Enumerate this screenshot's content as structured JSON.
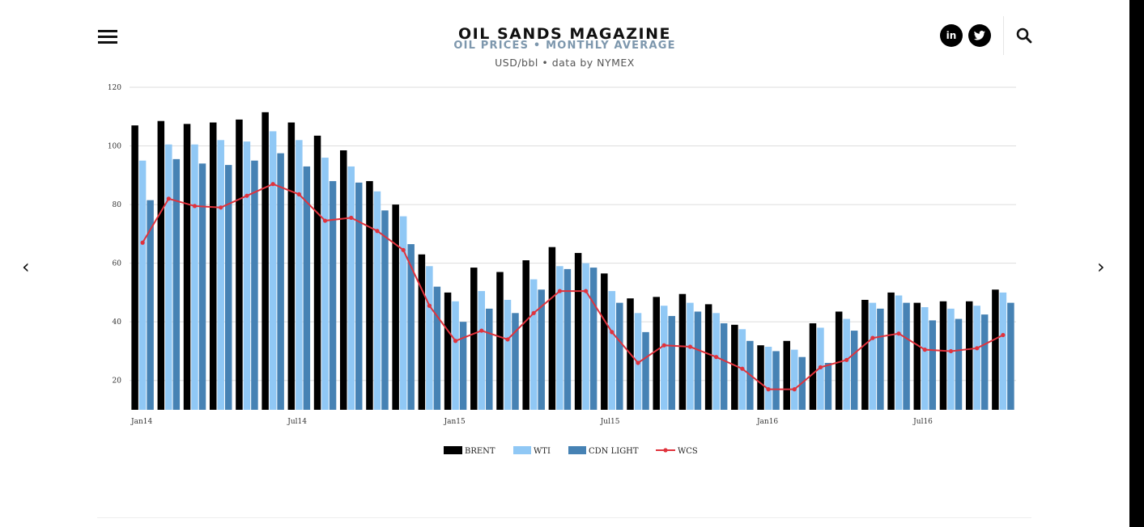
{
  "header": {
    "site_title": "OIL SANDS MAGAZINE",
    "menu_icon": "hamburger-menu-icon",
    "social": [
      {
        "name": "linkedin-icon",
        "label": "in"
      },
      {
        "name": "twitter-icon",
        "label": "🐦"
      }
    ],
    "search_icon": "search-icon"
  },
  "nav": {
    "prev_label": "‹",
    "next_label": "›"
  },
  "colors": {
    "BRENT": "#000000",
    "WTI": "#90c8f5",
    "CDN LIGHT": "#4682b4",
    "WCS": "#e0323c",
    "grid": "#dddddd",
    "title": "#7d97ad"
  },
  "chart_data": {
    "type": "bar",
    "title": "OIL PRICES • MONTHLY AVERAGE",
    "subtitle": "USD/bbl • data by NYMEX",
    "xlabel": "",
    "ylabel": "",
    "ylim": [
      10,
      120
    ],
    "yticks": [
      20,
      40,
      60,
      80,
      100,
      120
    ],
    "grid": true,
    "legend_position": "bottom-center",
    "categories": [
      "Jan14",
      "Feb14",
      "Mar14",
      "Apr14",
      "May14",
      "Jun14",
      "Jul14",
      "Aug14",
      "Sep14",
      "Oct14",
      "Nov14",
      "Dec14",
      "Jan15",
      "Feb15",
      "Mar15",
      "Apr15",
      "May15",
      "Jun15",
      "Jul15",
      "Aug15",
      "Sep15",
      "Oct15",
      "Nov15",
      "Dec15",
      "Jan16",
      "Feb16",
      "Mar16",
      "Apr16",
      "May16",
      "Jun16",
      "Jul16",
      "Aug16",
      "Sep16",
      "Oct16"
    ],
    "tick_labels": [
      {
        "index": 0,
        "label": "Jan14"
      },
      {
        "index": 6,
        "label": "Jul14"
      },
      {
        "index": 12,
        "label": "Jan15"
      },
      {
        "index": 18,
        "label": "Jul15"
      },
      {
        "index": 24,
        "label": "Jan16"
      },
      {
        "index": 30,
        "label": "Jul16"
      }
    ],
    "series": [
      {
        "name": "BRENT",
        "type": "bar",
        "values": [
          107,
          108.5,
          107.5,
          108,
          109,
          111.5,
          108,
          103.5,
          98.5,
          88,
          80,
          63,
          50,
          58.5,
          57,
          61,
          65.5,
          63.5,
          56.5,
          48,
          48.5,
          49.5,
          46,
          39,
          32,
          33.5,
          39.5,
          43.5,
          47.5,
          50,
          46.5,
          47,
          47,
          51
        ]
      },
      {
        "name": "WTI",
        "type": "bar",
        "values": [
          95,
          100.5,
          100.5,
          102,
          101.5,
          105,
          102,
          96,
          93,
          84.5,
          76,
          59,
          47,
          50.5,
          47.5,
          54.5,
          59,
          60,
          50.5,
          43,
          45.5,
          46.5,
          43,
          37.5,
          31.5,
          30.5,
          38,
          41,
          46.5,
          49,
          45,
          44.5,
          45.5,
          50
        ]
      },
      {
        "name": "CDN LIGHT",
        "type": "bar",
        "values": [
          81.5,
          95.5,
          94,
          93.5,
          95,
          97.5,
          93,
          88,
          87.5,
          78,
          66.5,
          52,
          40,
          44.5,
          43,
          51,
          58,
          58.5,
          46.5,
          36.5,
          42,
          43.5,
          39.5,
          33.5,
          30,
          28,
          26,
          37,
          44.5,
          46.5,
          40.5,
          41,
          42.5,
          46.5
        ]
      },
      {
        "name": "WCS",
        "type": "line",
        "values": [
          67,
          82,
          79.5,
          79,
          83,
          87,
          83.5,
          74.5,
          75.5,
          71,
          64.5,
          45.5,
          33.5,
          37,
          34,
          43,
          50.5,
          50.5,
          36.5,
          26,
          32,
          31.5,
          28,
          24,
          17,
          17,
          24.5,
          27,
          34.5,
          36,
          30.5,
          30,
          31,
          35.5
        ]
      }
    ]
  }
}
